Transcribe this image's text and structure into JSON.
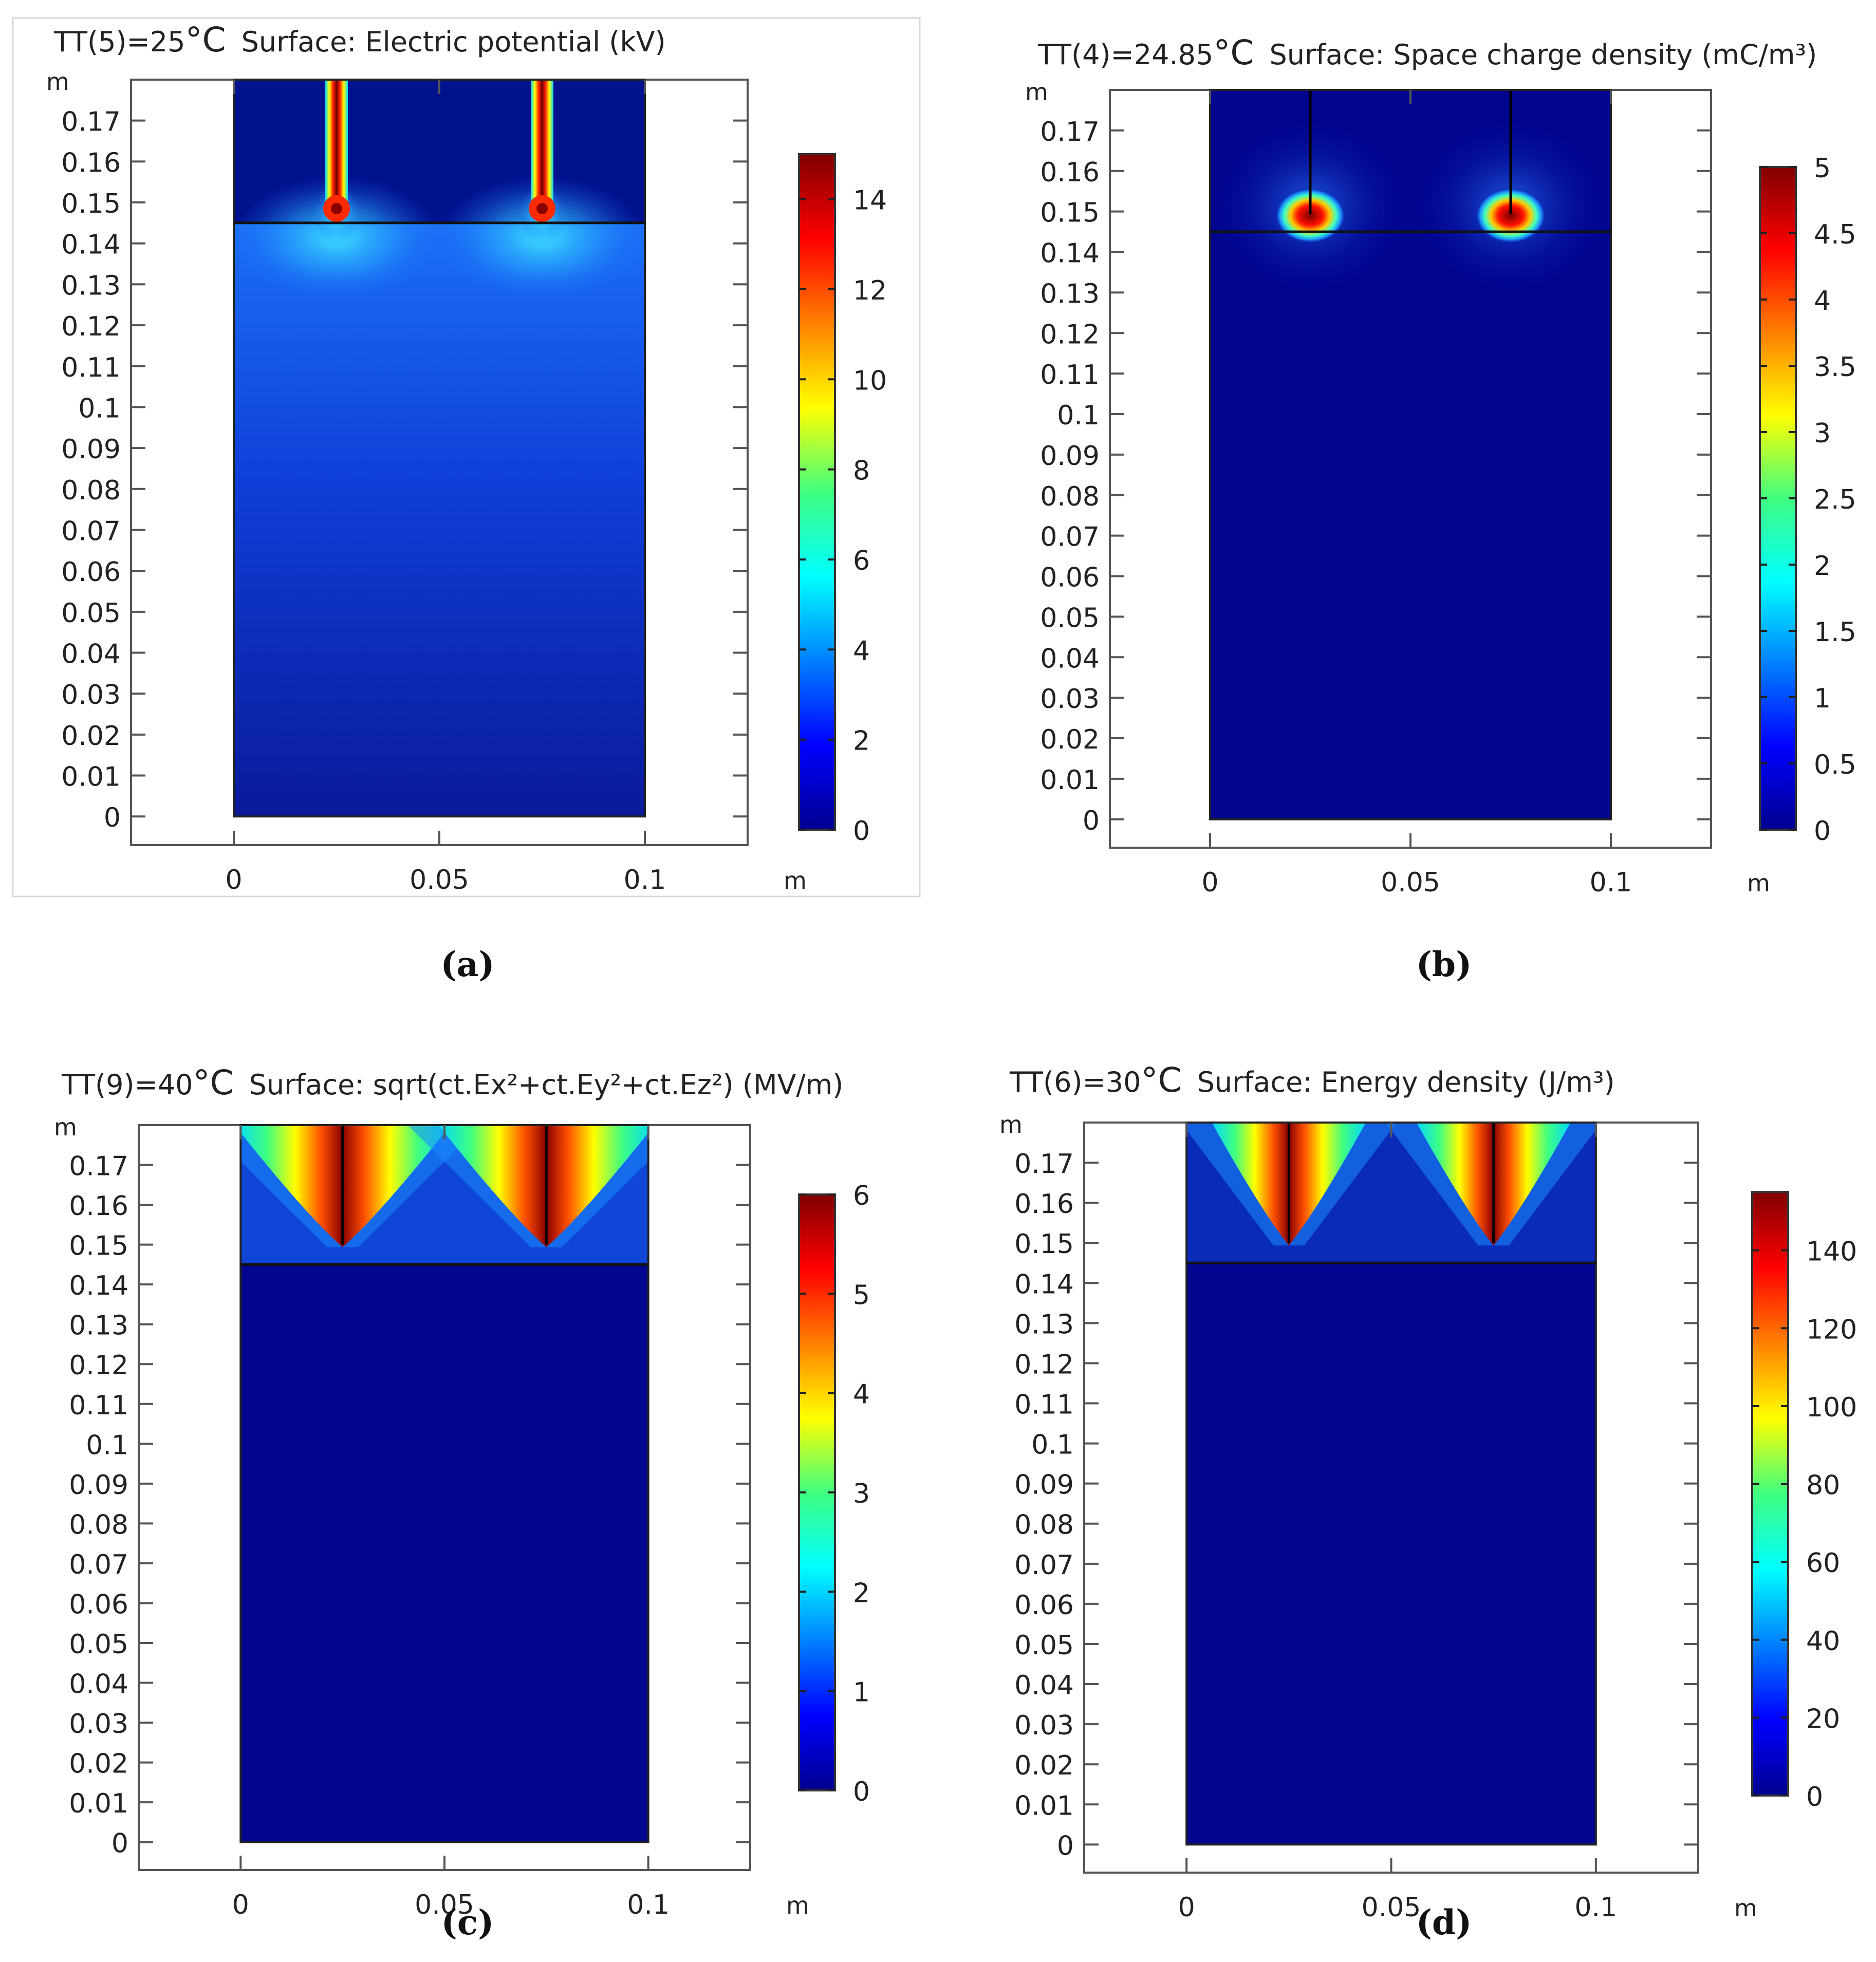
{
  "chart_data": [
    {
      "type": "heatmap",
      "panel_label": "(a)",
      "title_prefix": "TT(5)=25",
      "title_deg": "°C",
      "title_suffix": "Surface: Electric potential (kV)",
      "ylabel": "m",
      "xlabel": "m",
      "xlim": [
        -0.025,
        0.125
      ],
      "ylim": [
        -0.007,
        0.18
      ],
      "xticks": [
        0,
        0.05,
        0.1
      ],
      "xtick_labels": [
        "0",
        "0.05",
        "0.1"
      ],
      "yticks": [
        0,
        0.01,
        0.02,
        0.03,
        0.04,
        0.05,
        0.06,
        0.07,
        0.08,
        0.09,
        0.1,
        0.11,
        0.12,
        0.13,
        0.14,
        0.15,
        0.16,
        0.17
      ],
      "ytick_labels": [
        "0",
        "0.01",
        "0.02",
        "0.03",
        "0.04",
        "0.05",
        "0.06",
        "0.07",
        "0.08",
        "0.09",
        "0.1",
        "0.11",
        "0.12",
        "0.13",
        "0.14",
        "0.15",
        "0.16",
        "0.17"
      ],
      "domain": {
        "x": [
          0,
          0.1
        ],
        "y": [
          0,
          0.18
        ]
      },
      "interface_y": 0.145,
      "electrodes_x": [
        0.025,
        0.075
      ],
      "electrode_tip_y": 0.15,
      "field_pattern": "potential",
      "colorbar": {
        "min": 0,
        "max": 15,
        "ticks": [
          0,
          2,
          4,
          6,
          8,
          10,
          12,
          14
        ],
        "tick_labels": [
          "0",
          "2",
          "4",
          "6",
          "8",
          "10",
          "12",
          "14"
        ]
      }
    },
    {
      "type": "heatmap",
      "panel_label": "(b)",
      "title_prefix": "TT(4)=24.85",
      "title_deg": "°C",
      "title_suffix": "Surface: Space charge density (mC/m³)",
      "ylabel": "m",
      "xlabel": "m",
      "xlim": [
        -0.025,
        0.125
      ],
      "ylim": [
        -0.007,
        0.18
      ],
      "xticks": [
        0,
        0.05,
        0.1
      ],
      "xtick_labels": [
        "0",
        "0.05",
        "0.1"
      ],
      "yticks": [
        0,
        0.01,
        0.02,
        0.03,
        0.04,
        0.05,
        0.06,
        0.07,
        0.08,
        0.09,
        0.1,
        0.11,
        0.12,
        0.13,
        0.14,
        0.15,
        0.16,
        0.17
      ],
      "ytick_labels": [
        "0",
        "0.01",
        "0.02",
        "0.03",
        "0.04",
        "0.05",
        "0.06",
        "0.07",
        "0.08",
        "0.09",
        "0.1",
        "0.11",
        "0.12",
        "0.13",
        "0.14",
        "0.15",
        "0.16",
        "0.17"
      ],
      "domain": {
        "x": [
          0,
          0.1
        ],
        "y": [
          0,
          0.18
        ]
      },
      "interface_y": 0.145,
      "electrodes_x": [
        0.025,
        0.075
      ],
      "electrode_tip_y": 0.15,
      "field_pattern": "charge",
      "colorbar": {
        "min": 0,
        "max": 5,
        "ticks": [
          0,
          0.5,
          1,
          1.5,
          2,
          2.5,
          3,
          3.5,
          4,
          4.5,
          5
        ],
        "tick_labels": [
          "0",
          "0.5",
          "1",
          "1.5",
          "2",
          "2.5",
          "3",
          "3.5",
          "4",
          "4.5",
          "5"
        ]
      }
    },
    {
      "type": "heatmap",
      "panel_label": "(c)",
      "title_prefix": "TT(9)=40",
      "title_deg": "°C",
      "title_suffix": "Surface: sqrt(ct.Ex²+ct.Ey²+ct.Ez²) (MV/m)",
      "ylabel": "m",
      "xlabel": "m",
      "xlim": [
        -0.025,
        0.125
      ],
      "ylim": [
        -0.007,
        0.18
      ],
      "xticks": [
        0,
        0.05,
        0.1
      ],
      "xtick_labels": [
        "0",
        "0.05",
        "0.1"
      ],
      "yticks": [
        0,
        0.01,
        0.02,
        0.03,
        0.04,
        0.05,
        0.06,
        0.07,
        0.08,
        0.09,
        0.1,
        0.11,
        0.12,
        0.13,
        0.14,
        0.15,
        0.16,
        0.17
      ],
      "ytick_labels": [
        "0",
        "0.01",
        "0.02",
        "0.03",
        "0.04",
        "0.05",
        "0.06",
        "0.07",
        "0.08",
        "0.09",
        "0.1",
        "0.11",
        "0.12",
        "0.13",
        "0.14",
        "0.15",
        "0.16",
        "0.17"
      ],
      "domain": {
        "x": [
          0,
          0.1
        ],
        "y": [
          0,
          0.18
        ]
      },
      "interface_y": 0.145,
      "electrodes_x": [
        0.025,
        0.075
      ],
      "electrode_tip_y": 0.15,
      "field_pattern": "efield",
      "colorbar": {
        "min": 0,
        "max": 6,
        "ticks": [
          0,
          1,
          2,
          3,
          4,
          5,
          6
        ],
        "tick_labels": [
          "0",
          "1",
          "2",
          "3",
          "4",
          "5",
          "6"
        ]
      }
    },
    {
      "type": "heatmap",
      "panel_label": "(d)",
      "title_prefix": "TT(6)=30",
      "title_deg": "°C",
      "title_suffix": "Surface: Energy density (J/m³)",
      "ylabel": "m",
      "xlabel": "m",
      "xlim": [
        -0.025,
        0.125
      ],
      "ylim": [
        -0.007,
        0.18
      ],
      "xticks": [
        0,
        0.05,
        0.1
      ],
      "xtick_labels": [
        "0",
        "0.05",
        "0.1"
      ],
      "yticks": [
        0,
        0.01,
        0.02,
        0.03,
        0.04,
        0.05,
        0.06,
        0.07,
        0.08,
        0.09,
        0.1,
        0.11,
        0.12,
        0.13,
        0.14,
        0.15,
        0.16,
        0.17
      ],
      "ytick_labels": [
        "0",
        "0.01",
        "0.02",
        "0.03",
        "0.04",
        "0.05",
        "0.06",
        "0.07",
        "0.08",
        "0.09",
        "0.1",
        "0.11",
        "0.12",
        "0.13",
        "0.14",
        "0.15",
        "0.16",
        "0.17"
      ],
      "domain": {
        "x": [
          0,
          0.1
        ],
        "y": [
          0,
          0.18
        ]
      },
      "interface_y": 0.145,
      "electrodes_x": [
        0.025,
        0.075
      ],
      "electrode_tip_y": 0.15,
      "field_pattern": "energy",
      "colorbar": {
        "min": 0,
        "max": 155,
        "ticks": [
          0,
          20,
          40,
          60,
          80,
          100,
          120,
          140
        ],
        "tick_labels": [
          "0",
          "20",
          "40",
          "60",
          "80",
          "100",
          "120",
          "140"
        ]
      }
    }
  ]
}
